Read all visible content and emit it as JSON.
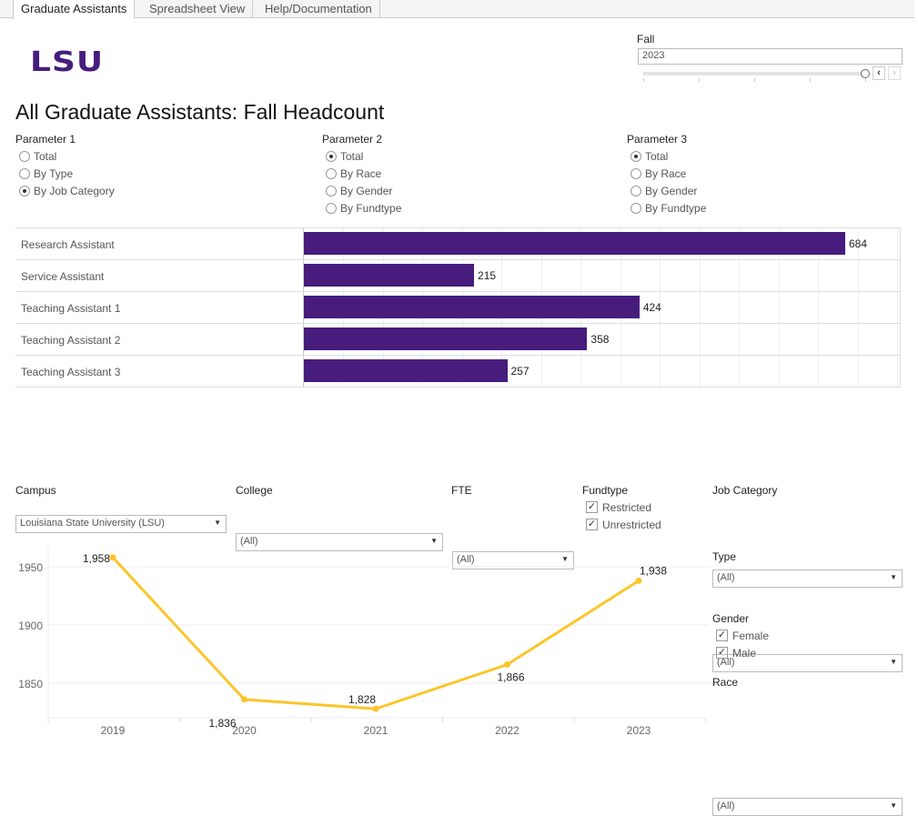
{
  "tabs": [
    "Graduate Assistants",
    "Spreadsheet View",
    "Help/Documentation"
  ],
  "logo": "LSU",
  "fall_filter": {
    "label": "Fall",
    "value": "2023"
  },
  "title": "All Graduate Assistants: Fall Headcount",
  "parameters": [
    {
      "label": "Parameter 1",
      "options": [
        "Total",
        "By Type",
        "By Job Category"
      ],
      "selected": "By Job Category"
    },
    {
      "label": "Parameter 2",
      "options": [
        "Total",
        "By Race",
        "By Gender",
        "By Fundtype"
      ],
      "selected": "Total"
    },
    {
      "label": "Parameter 3",
      "options": [
        "Total",
        "By Race",
        "By Gender",
        "By Fundtype"
      ],
      "selected": "Total"
    }
  ],
  "filters": {
    "campus": {
      "label": "Campus",
      "value": "Louisiana State University (LSU)"
    },
    "college": {
      "label": "College",
      "value": "(All)"
    },
    "fte": {
      "label": "FTE",
      "value": "(All)"
    },
    "fundtype": {
      "label": "Fundtype",
      "options": [
        "Restricted",
        "Unrestricted"
      ],
      "checked": [
        true,
        true
      ]
    },
    "job_category": {
      "label": "Job Category",
      "value": "(All)"
    },
    "type": {
      "label": "Type",
      "value": "(All)"
    },
    "gender": {
      "label": "Gender",
      "options": [
        "Female",
        "Male"
      ],
      "checked": [
        true,
        true
      ]
    },
    "race": {
      "label": "Race",
      "value": "(All)"
    }
  },
  "colors": {
    "bar": "#461d7c",
    "line": "#fdc52a",
    "brand": "#461d7c"
  },
  "chart_data": [
    {
      "type": "bar",
      "orientation": "horizontal",
      "categories": [
        "Research Assistant",
        "Service Assistant",
        "Teaching Assistant 1",
        "Teaching Assistant 2",
        "Teaching Assistant 3"
      ],
      "values": [
        684,
        215,
        424,
        358,
        257
      ],
      "data_labels": [
        "684",
        "215",
        "424",
        "358",
        "257"
      ],
      "xlim": [
        0,
        750
      ],
      "grid": true
    },
    {
      "type": "line",
      "x": [
        2019,
        2020,
        2021,
        2022,
        2023
      ],
      "values": [
        1958,
        1836,
        1828,
        1866,
        1938
      ],
      "data_labels": [
        "1,958",
        "1,836",
        "1,828",
        "1,866",
        "1,938"
      ],
      "yticks": [
        "1850",
        "1900",
        "1950"
      ],
      "ylim": [
        1820,
        1965
      ],
      "grid": true
    }
  ]
}
